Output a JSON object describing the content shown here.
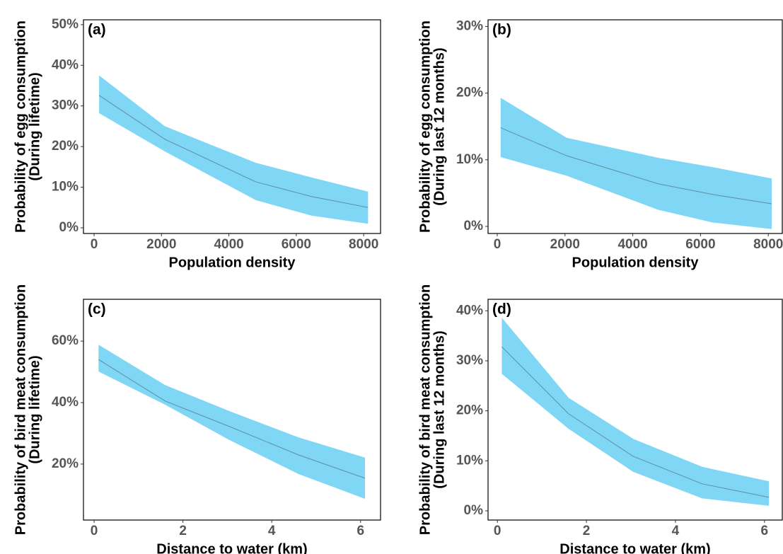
{
  "chart_data": [
    {
      "type": "line",
      "panel_label": "(a)",
      "xlabel": "Population density",
      "ylabel": [
        "Probability of egg consumption",
        "(During lifetime)"
      ],
      "x": [
        150,
        2100,
        4800,
        6450,
        8130
      ],
      "values": [
        32.6,
        21.8,
        11.3,
        7.7,
        5.0
      ],
      "upper": [
        37.5,
        25.0,
        16.0,
        12.4,
        8.9
      ],
      "lower": [
        28.2,
        18.8,
        6.8,
        3.0,
        1.0
      ],
      "color": "#5f8fa6",
      "band_color": "#7fd6f5",
      "xlim": [
        -315,
        8500
      ],
      "xticks": [
        0,
        2000,
        4000,
        6000,
        8000
      ],
      "ylim": [
        -1.4,
        51.2
      ],
      "yticks": [
        {
          "value": 0,
          "label": "0%"
        },
        {
          "value": 10,
          "label": "10%"
        },
        {
          "value": 20,
          "label": "20%"
        },
        {
          "value": 30,
          "label": "30%"
        },
        {
          "value": 40,
          "label": "40%"
        },
        {
          "value": 50,
          "label": "50%"
        }
      ]
    },
    {
      "type": "line",
      "panel_label": "(b)",
      "xlabel": "Population density",
      "ylabel": [
        "Probability of egg consumption",
        "(During last 12 months)"
      ],
      "x": [
        100,
        2050,
        4750,
        6350,
        8100
      ],
      "values": [
        14.8,
        10.6,
        6.4,
        4.8,
        3.4
      ],
      "upper": [
        19.3,
        13.3,
        10.3,
        8.9,
        7.2
      ],
      "lower": [
        10.4,
        7.6,
        2.5,
        0.6,
        -0.4
      ],
      "color": "#5f8fa6",
      "band_color": "#7fd6f5",
      "xlim": [
        -271,
        8413
      ],
      "xticks": [
        0,
        2000,
        4000,
        6000,
        8000
      ],
      "ylim": [
        -1.06,
        31.0
      ],
      "yticks": [
        {
          "value": 0,
          "label": "0%"
        },
        {
          "value": 10,
          "label": "10%"
        },
        {
          "value": 20,
          "label": "20%"
        },
        {
          "value": 30,
          "label": "30%"
        }
      ]
    },
    {
      "type": "line",
      "panel_label": "(c)",
      "xlabel": "Distance to water (km)",
      "ylabel": [
        "Probability of bird meat consumption",
        "(During lifetime)"
      ],
      "x": [
        0.1,
        1.6,
        3.05,
        4.6,
        6.1
      ],
      "values": [
        54.0,
        40.5,
        32.2,
        23.0,
        15.4
      ],
      "upper": [
        58.8,
        45.7,
        37.2,
        28.7,
        22.1
      ],
      "lower": [
        50.1,
        39.3,
        27.8,
        16.8,
        8.7
      ],
      "color": "#5f8fa6",
      "band_color": "#7fd6f5",
      "xlim": [
        -0.24,
        6.45
      ],
      "xticks": [
        0,
        2,
        4,
        6
      ],
      "ylim": [
        1.8,
        73.6
      ],
      "yticks": [
        {
          "value": 20,
          "label": "20%"
        },
        {
          "value": 40,
          "label": "40%"
        },
        {
          "value": 60,
          "label": "60%"
        }
      ]
    },
    {
      "type": "line",
      "panel_label": "(d)",
      "xlabel": "Distance to water (km)",
      "ylabel": [
        "Probability of bird meat consumption",
        "(During last 12 months)"
      ],
      "x": [
        0.1,
        1.6,
        3.05,
        4.6,
        6.1
      ],
      "values": [
        32.8,
        19.4,
        10.9,
        5.4,
        2.7
      ],
      "upper": [
        38.6,
        22.6,
        14.4,
        8.8,
        5.9
      ],
      "lower": [
        27.4,
        16.4,
        7.8,
        2.5,
        1.0
      ],
      "color": "#5f8fa6",
      "band_color": "#7fd6f5",
      "xlim": [
        -0.21,
        6.4
      ],
      "xticks": [
        0,
        2,
        4,
        6
      ],
      "ylim": [
        -1.84,
        42.3
      ],
      "yticks": [
        {
          "value": 0,
          "label": "0%"
        },
        {
          "value": 10,
          "label": "10%"
        },
        {
          "value": 20,
          "label": "20%"
        },
        {
          "value": 30,
          "label": "30%"
        },
        {
          "value": 40,
          "label": "40%"
        }
      ]
    }
  ]
}
